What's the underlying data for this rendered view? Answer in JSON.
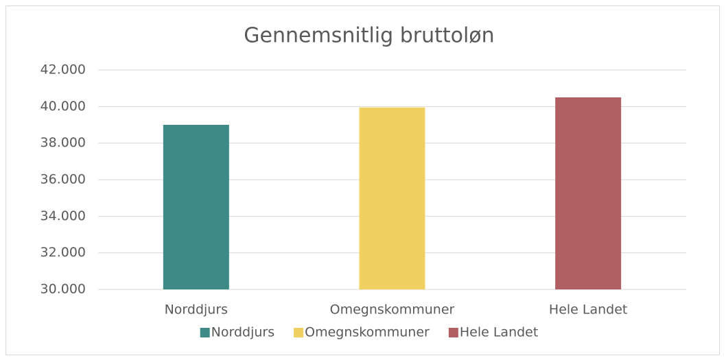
{
  "chart_data": {
    "type": "bar",
    "title": "Gennemsnitlig bruttoløn",
    "categories": [
      "Norddjurs",
      "Omegnskommuner",
      "Hele Landet"
    ],
    "series": [
      {
        "name": "Norddjurs",
        "color": "#3d8a87",
        "values": [
          39000,
          null,
          null
        ]
      },
      {
        "name": "Omegnskommuner",
        "color": "#f0d060",
        "values": [
          null,
          39950,
          null
        ]
      },
      {
        "name": "Hele Landet",
        "color": "#b05f63",
        "values": [
          null,
          null,
          40500
        ]
      }
    ],
    "ylim": [
      30000,
      42000
    ],
    "yticks": [
      {
        "value": 30000,
        "label": "30.000"
      },
      {
        "value": 32000,
        "label": "32.000"
      },
      {
        "value": 34000,
        "label": "34.000"
      },
      {
        "value": 36000,
        "label": "36.000"
      },
      {
        "value": 38000,
        "label": "38.000"
      },
      {
        "value": 40000,
        "label": "40.000"
      },
      {
        "value": 42000,
        "label": "42.000"
      }
    ],
    "grid": true,
    "legend": "bottom"
  }
}
